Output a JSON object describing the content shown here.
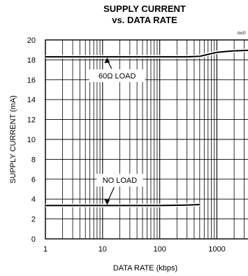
{
  "chart_data": {
    "type": "line",
    "title": [
      "SUPPLY CURRENT",
      "vs. DATA RATE"
    ],
    "figure_code": "toc0",
    "xlabel": "DATA RATE (kbps)",
    "ylabel": "SUPPLY CURRENT (mA)",
    "x_scale": "log",
    "xlim": [
      1,
      3500
    ],
    "ylim": [
      0,
      20
    ],
    "x_ticks": [
      1,
      10,
      100,
      1000
    ],
    "x_tick_labels": [
      "1",
      "10",
      "100",
      "1000"
    ],
    "y_ticks": [
      0,
      2,
      4,
      6,
      8,
      10,
      12,
      14,
      16,
      18,
      20
    ],
    "y_tick_labels": [
      "0",
      "2",
      "4",
      "6",
      "8",
      "10",
      "12",
      "14",
      "16",
      "18",
      "20"
    ],
    "grid": true,
    "series": [
      {
        "name": "60Ω LOAD",
        "x": [
          1,
          10,
          100,
          300,
          500,
          700,
          1000,
          1500,
          2000,
          3500
        ],
        "y": [
          18.3,
          18.3,
          18.3,
          18.3,
          18.35,
          18.55,
          18.75,
          18.85,
          18.9,
          18.95
        ]
      },
      {
        "name": "NO LOAD",
        "x": [
          1,
          10,
          100,
          300,
          500
        ],
        "y": [
          3.35,
          3.35,
          3.35,
          3.4,
          3.45
        ]
      }
    ],
    "annotations": [
      {
        "text": "60Ω LOAD",
        "series": "60Ω LOAD",
        "x": 18,
        "y": 16.4
      },
      {
        "text": "NO LOAD",
        "series": "NO LOAD",
        "x": 20,
        "y": 5.9
      }
    ]
  }
}
